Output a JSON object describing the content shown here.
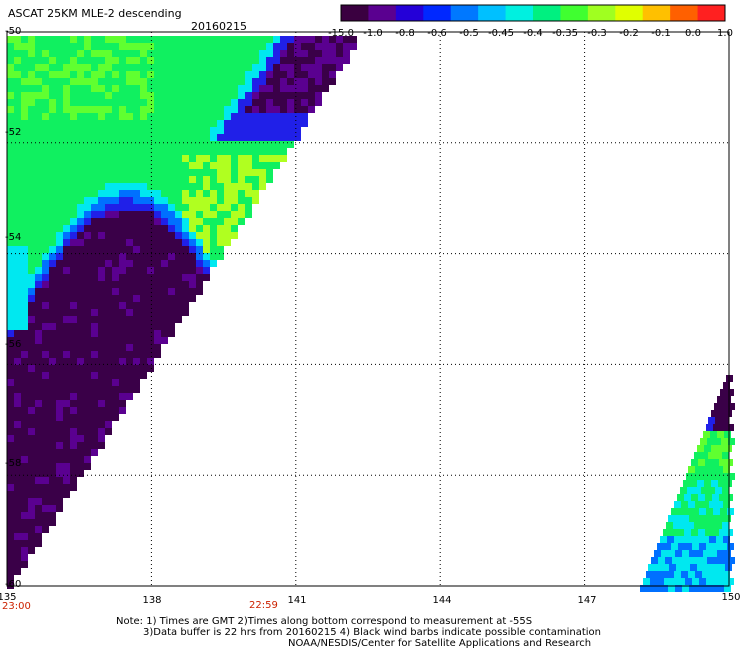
{
  "header": {
    "title": "ASCAT 25KM MLE-2 descending",
    "date": "20160215"
  },
  "colorbar": {
    "tick_labels": [
      "-15.0",
      "-1.0",
      "-0.8",
      "-0.6",
      "-0.5",
      "-0.45",
      "-0.4",
      "-0.35",
      "-0.3",
      "-0.2",
      "-0.1",
      "0.0",
      "1.0"
    ],
    "colors": [
      "#3a0040",
      "#5a0090",
      "#2400d8",
      "#0028ff",
      "#0078ff",
      "#00c0ff",
      "#00f0e0",
      "#00f080",
      "#40ff30",
      "#a0ff20",
      "#e0ff00",
      "#ffc000",
      "#ff6000",
      "#ff2020"
    ]
  },
  "axes": {
    "y_ticks": [
      "-50",
      "-52",
      "-54",
      "-56",
      "-58",
      "-60"
    ],
    "x_ticks": [
      "135",
      "138",
      "141",
      "144",
      "147",
      "150"
    ],
    "time_labels": [
      "23:00",
      "22:59"
    ]
  },
  "footer": {
    "note_line1": "Note: 1) Times are GMT 2)Times along bottom correspond to measurement at -55S",
    "note_line2": "3)Data buffer is 22 hrs from 20160215 4) Black wind barbs indicate possible contamination",
    "credit": "NOAA/NESDIS/Center for Satellite Applications and Research"
  }
}
